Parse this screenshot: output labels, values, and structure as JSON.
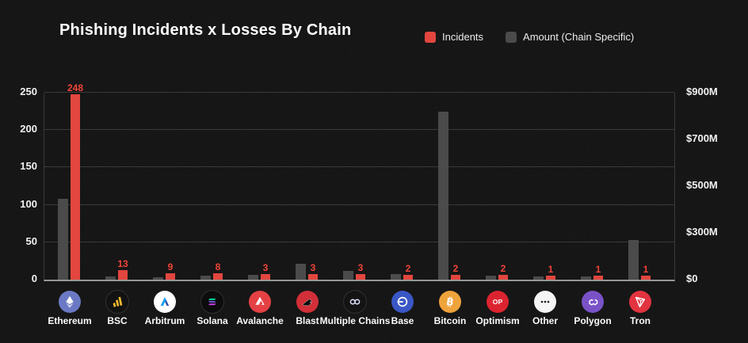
{
  "title": "Phishing Incidents x Losses By Chain",
  "legend": {
    "incidents": {
      "label": "Incidents",
      "color": "#e2463e"
    },
    "amount": {
      "label": "Amount (Chain Specific)",
      "color": "#4b4b4b"
    }
  },
  "left_axis": {
    "ticks": [
      "0",
      "50",
      "100",
      "150",
      "200",
      "250"
    ]
  },
  "right_axis": {
    "ticks": [
      "$0",
      "$300M",
      "$500M",
      "$700M",
      "$900M"
    ]
  },
  "chart_data": {
    "type": "bar",
    "title": "Phishing Incidents x Losses By Chain",
    "legend_position": "top",
    "grid": true,
    "categories": [
      "Ethereum",
      "BSC",
      "Arbitrum",
      "Solana",
      "Avalanche",
      "Blast",
      "Multiple Chains",
      "Base",
      "Bitcoin",
      "Optimism",
      "Other",
      "Polygon",
      "Tron"
    ],
    "series": [
      {
        "name": "Incidents",
        "axis": "left",
        "color": "#e2463e",
        "values": [
          248,
          13,
          9,
          8,
          3,
          3,
          3,
          2,
          2,
          2,
          1,
          1,
          1
        ]
      },
      {
        "name": "Amount (Chain Specific)",
        "axis": "right",
        "color": "#4b4b4b",
        "values_usd_m_est": [
          445,
          20,
          15,
          25,
          33,
          100,
          55,
          34,
          820,
          28,
          18,
          18,
          255
        ]
      }
    ],
    "left_axis": {
      "label": "Incidents",
      "range": [
        0,
        250
      ],
      "tick_step": 50
    },
    "right_axis": {
      "label": "Amount (Chain Specific)",
      "ticks_usd_m": [
        0,
        300,
        500,
        700,
        900
      ],
      "tick_spacing": "even"
    }
  },
  "chains": [
    {
      "name": "Ethereum",
      "icon": "ethereum-icon",
      "icon_bg": "#6b79c5"
    },
    {
      "name": "BSC",
      "icon": "bsc-icon",
      "icon_bg": "#121212"
    },
    {
      "name": "Arbitrum",
      "icon": "arbitrum-icon",
      "icon_bg": "#ffffff"
    },
    {
      "name": "Solana",
      "icon": "solana-icon",
      "icon_bg": "#0c0c0c"
    },
    {
      "name": "Avalanche",
      "icon": "avalanche-icon",
      "icon_bg": "#e54144"
    },
    {
      "name": "Blast",
      "icon": "blast-icon",
      "icon_bg": "#d22f38"
    },
    {
      "name": "Multiple Chains",
      "icon": "multiple-chains-icon",
      "icon_bg": "#141414"
    },
    {
      "name": "Base",
      "icon": "base-icon",
      "icon_bg": "#3a57c6"
    },
    {
      "name": "Bitcoin",
      "icon": "bitcoin-icon",
      "icon_bg": "#efa33b"
    },
    {
      "name": "Optimism",
      "icon": "optimism-icon",
      "icon_bg": "#dc2430"
    },
    {
      "name": "Other",
      "icon": "other-icon",
      "icon_bg": "#f5f5f5"
    },
    {
      "name": "Polygon",
      "icon": "polygon-icon",
      "icon_bg": "#7a52c7"
    },
    {
      "name": "Tron",
      "icon": "tron-icon",
      "icon_bg": "#e23440"
    }
  ]
}
